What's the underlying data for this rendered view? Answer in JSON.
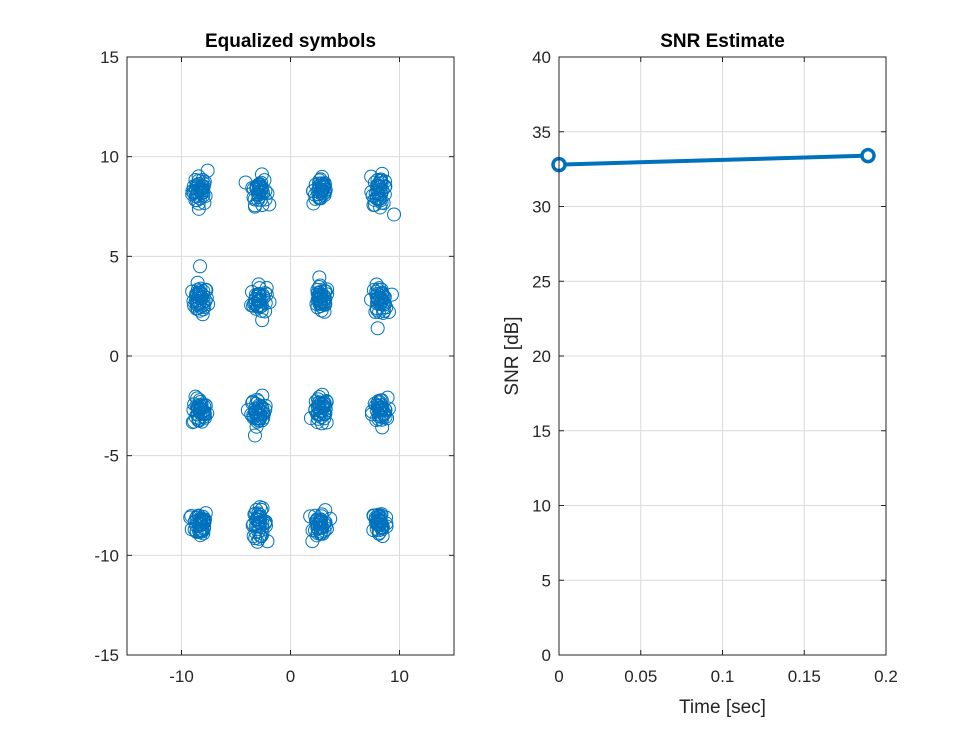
{
  "colors": {
    "series": "#0072BD",
    "axis": "#262626",
    "grid": "#dcdcdc"
  },
  "chart_data": [
    {
      "type": "scatter",
      "title": "Equalized symbols",
      "xlabel": "",
      "ylabel": "",
      "xlim": [
        -15,
        15
      ],
      "ylim": [
        -15,
        15
      ],
      "xticks": [
        -10,
        0,
        10
      ],
      "yticks": [
        -15,
        -10,
        -5,
        0,
        5,
        10,
        15
      ],
      "xtick_labels": [
        "-10",
        "0",
        "10"
      ],
      "ytick_labels": [
        "-15",
        "-10",
        "-5",
        "0",
        "5",
        "10",
        "15"
      ],
      "grid": true,
      "marker": "circle-open",
      "cluster_centers_x": [
        -8.3,
        -2.9,
        2.8,
        8.2
      ],
      "cluster_centers_y": [
        8.3,
        2.8,
        -2.8,
        -8.4
      ],
      "points_per_cluster": 40,
      "cluster_spread": 0.35,
      "outliers": [
        [
          -8.3,
          4.5
        ],
        [
          -9.2,
          -8.1
        ],
        [
          -8.0,
          -8.9
        ],
        [
          -2.6,
          1.8
        ],
        [
          9.5,
          7.1
        ],
        [
          7.4,
          9.0
        ],
        [
          -7.6,
          9.3
        ]
      ]
    },
    {
      "type": "line",
      "title": "SNR Estimate",
      "xlabel": "Time [sec]",
      "ylabel": "SNR [dB]",
      "xlim": [
        0,
        0.2
      ],
      "ylim": [
        0,
        40
      ],
      "xticks": [
        0,
        0.05,
        0.1,
        0.15,
        0.2
      ],
      "yticks": [
        0,
        5,
        10,
        15,
        20,
        25,
        30,
        35,
        40
      ],
      "xtick_labels": [
        "0",
        "0.05",
        "0.1",
        "0.15",
        "0.2"
      ],
      "ytick_labels": [
        "0",
        "5",
        "10",
        "15",
        "20",
        "25",
        "30",
        "35",
        "40"
      ],
      "grid": true,
      "marker": "circle-open",
      "x": [
        0,
        0.189
      ],
      "y": [
        32.8,
        33.4
      ]
    }
  ]
}
